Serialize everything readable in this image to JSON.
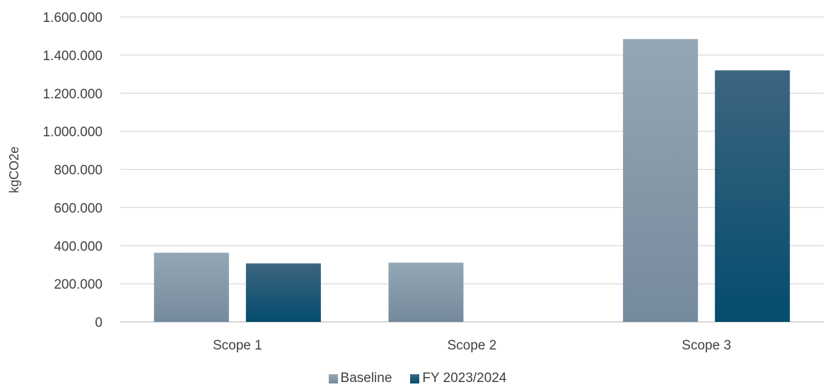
{
  "chart_data": {
    "type": "bar",
    "title": "",
    "xlabel": "",
    "ylabel": "kgCO2e",
    "categories": [
      "Scope 1",
      "Scope 2",
      "Scope 3"
    ],
    "series": [
      {
        "name": "Baseline",
        "values": [
          363000,
          311000,
          1484000
        ],
        "color_top": "#95a7b4",
        "color_bottom": "#758a9d"
      },
      {
        "name": "FY 2023/2024",
        "values": [
          307000,
          0,
          1320000
        ],
        "color_top": "#3d6580",
        "color_bottom": "#044c6d"
      }
    ],
    "ylim": [
      0,
      1600000
    ],
    "yticks": [
      0,
      200000,
      400000,
      600000,
      800000,
      1000000,
      1200000,
      1400000,
      1600000
    ],
    "ytick_labels": [
      "0",
      "200.000",
      "400.000",
      "600.000",
      "800.000",
      "1.000.000",
      "1.200.000",
      "1.400.000",
      "1.600.000"
    ],
    "grid": true,
    "legend_position": "bottom"
  }
}
